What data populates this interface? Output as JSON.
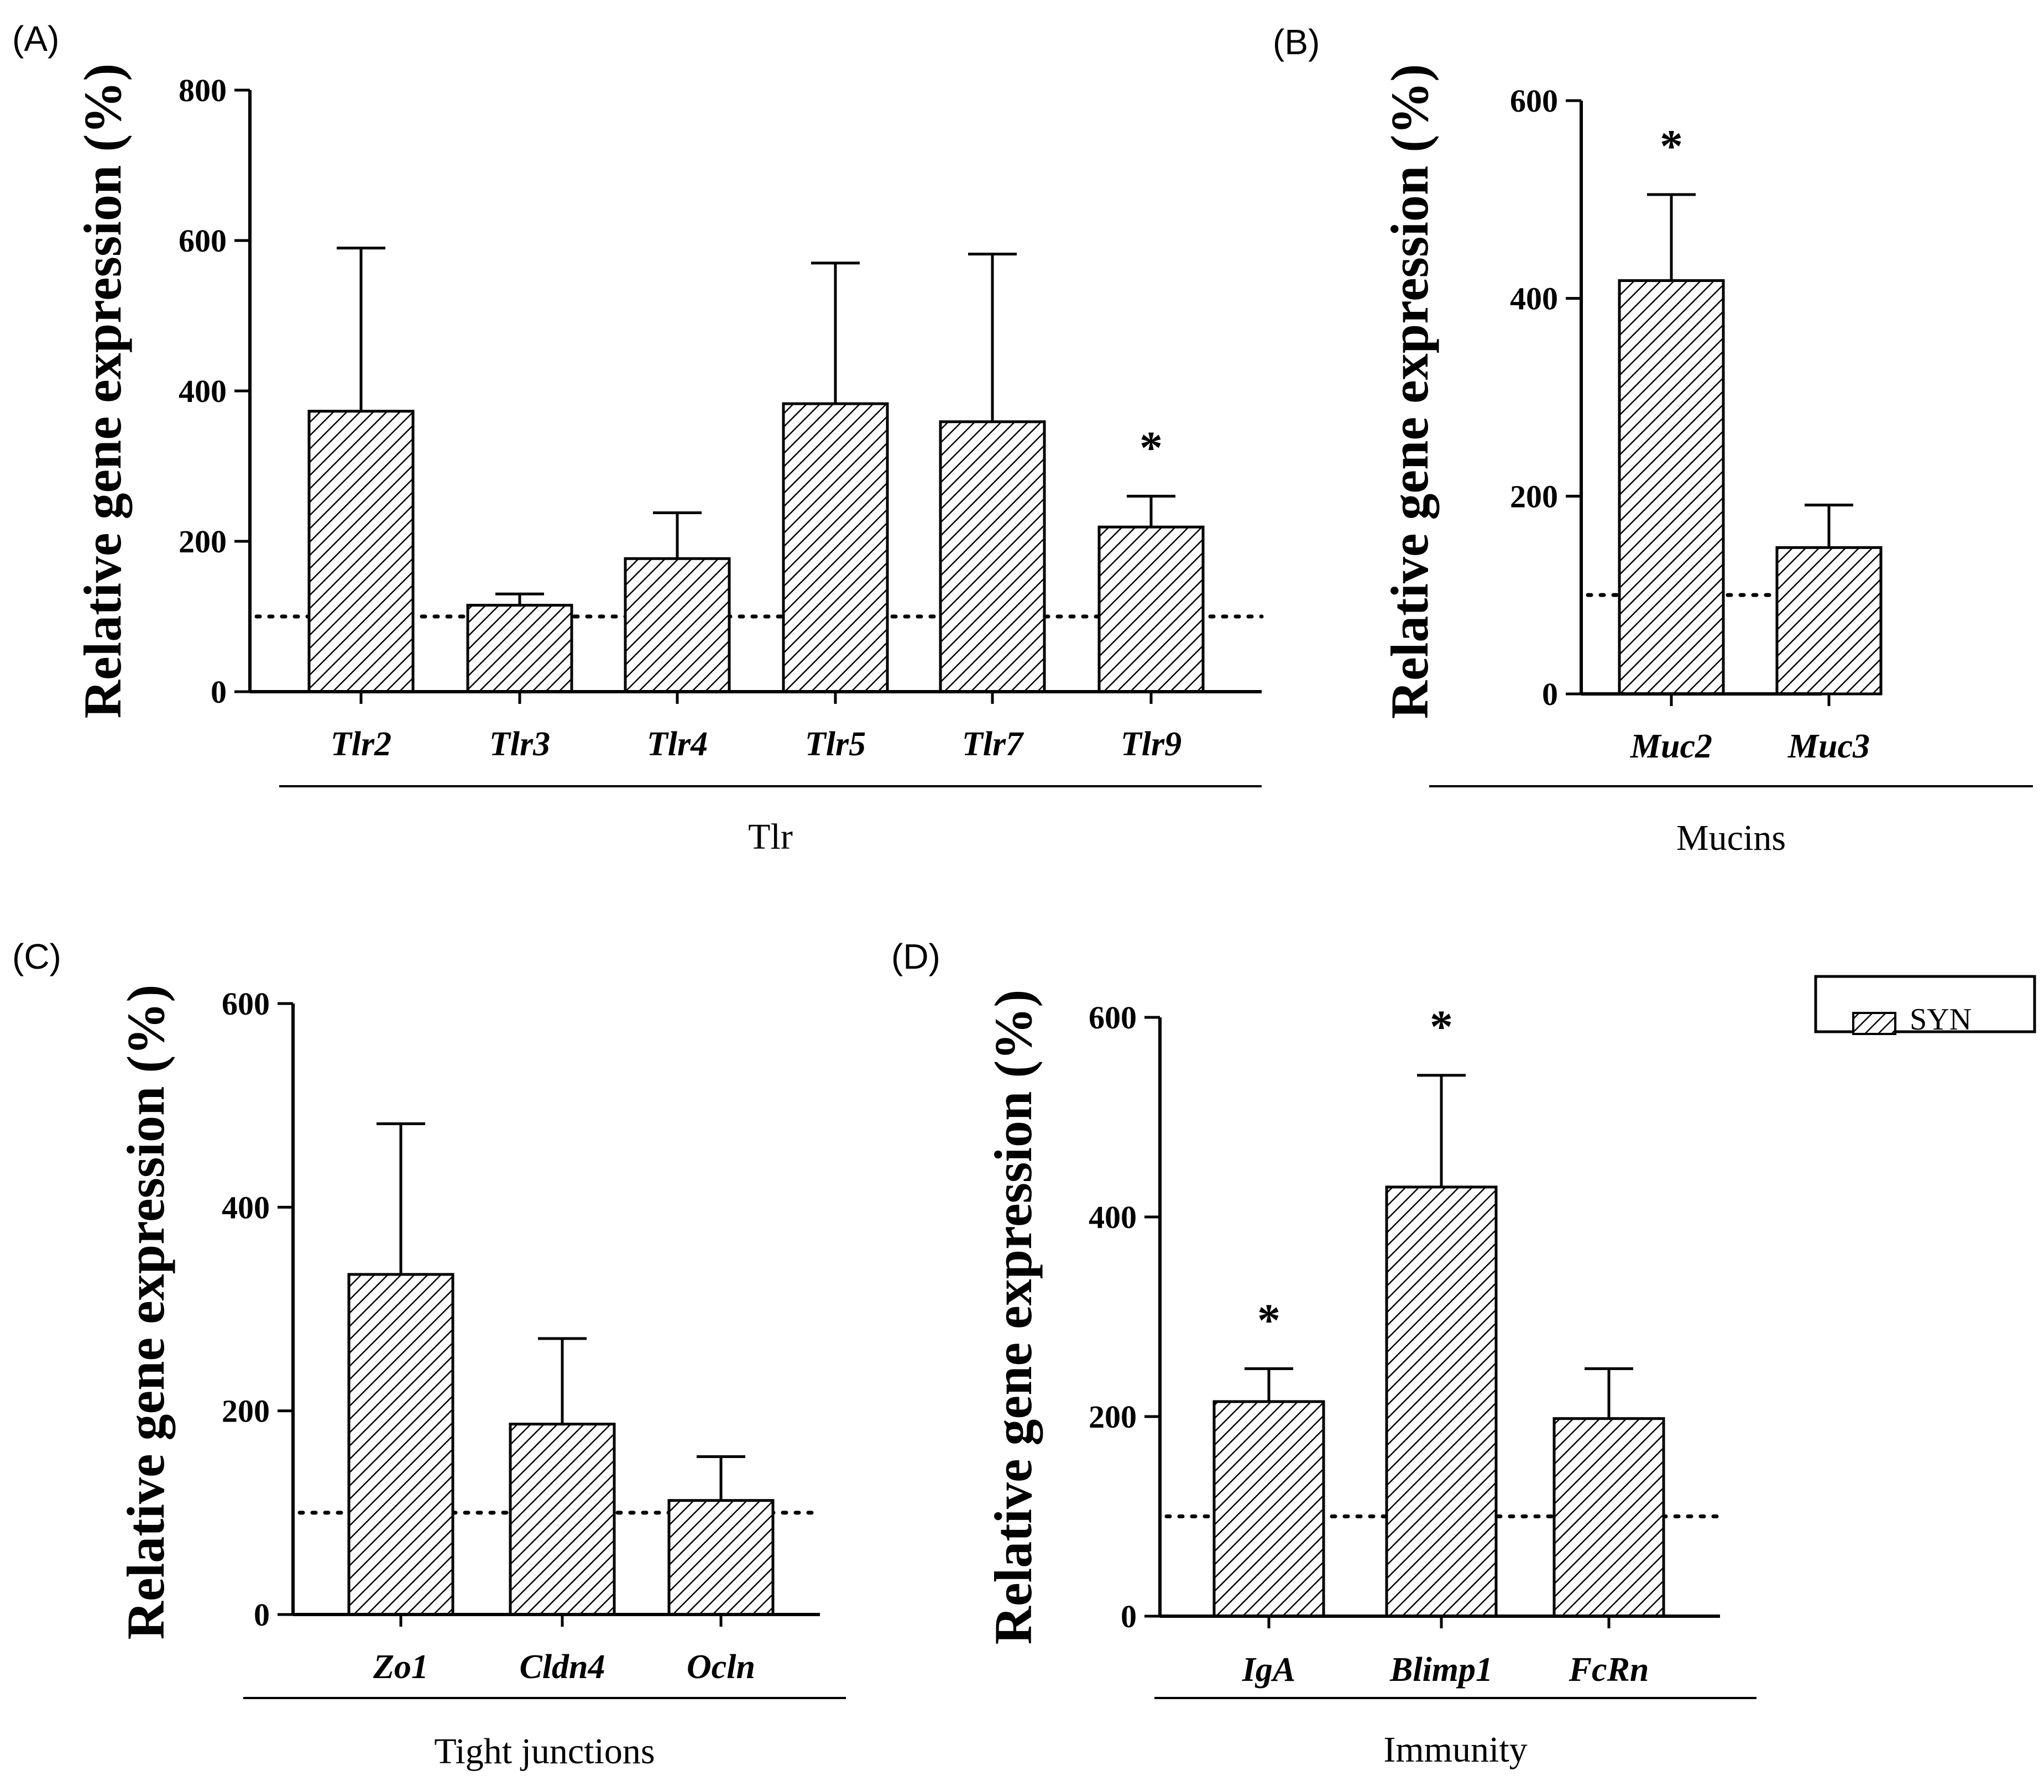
{
  "figure": {
    "hatch_color": "#000000",
    "bar_fill": "#ffffff",
    "reference_line": {
      "value": 100,
      "style": "dotted"
    }
  },
  "legend": {
    "label": "SYN",
    "swatch": "diagonal-hatch"
  },
  "chart_data": [
    {
      "type": "bar",
      "panel_label": "(A)",
      "ylabel": "Relative gene expression (%)",
      "group_label": "Tlr",
      "ylim": [
        0,
        800
      ],
      "yticks": [
        0,
        200,
        400,
        600,
        800
      ],
      "categories": [
        "Tlr2",
        "Tlr3",
        "Tlr4",
        "Tlr5",
        "Tlr7",
        "Tlr9"
      ],
      "series": [
        {
          "values": [
            373,
            115,
            177,
            383,
            359,
            219
          ],
          "error_upper": [
            590,
            130,
            238,
            570,
            582,
            260
          ],
          "significant": [
            false,
            false,
            false,
            false,
            false,
            true
          ]
        }
      ],
      "significance_mark": "*"
    },
    {
      "type": "bar",
      "panel_label": "(B)",
      "ylabel": "Relative gene expression (%)",
      "group_label": "Mucins",
      "ylim": [
        0,
        600
      ],
      "yticks": [
        0,
        200,
        400,
        600
      ],
      "categories": [
        "Muc2",
        "Muc3"
      ],
      "series": [
        {
          "values": [
            418,
            148
          ],
          "error_upper": [
            505,
            191
          ],
          "significant": [
            true,
            false
          ]
        }
      ],
      "significance_mark": "*"
    },
    {
      "type": "bar",
      "panel_label": "(C)",
      "ylabel": "Relative gene expression (%)",
      "group_label": "Tight junctions",
      "ylim": [
        0,
        600
      ],
      "yticks": [
        0,
        200,
        400,
        600
      ],
      "categories": [
        "Zo1",
        "Cldn4",
        "Ocln"
      ],
      "series": [
        {
          "values": [
            334,
            187,
            112
          ],
          "error_upper": [
            482,
            271,
            155
          ],
          "significant": [
            false,
            false,
            false
          ]
        }
      ],
      "significance_mark": "*"
    },
    {
      "type": "bar",
      "panel_label": "(D)",
      "ylabel": "Relative gene expression (%)",
      "group_label": "Immunity",
      "ylim": [
        0,
        600
      ],
      "yticks": [
        0,
        200,
        400,
        600
      ],
      "categories": [
        "IgA",
        "Blimp1",
        "FcRn"
      ],
      "series": [
        {
          "values": [
            215,
            430,
            198
          ],
          "error_upper": [
            248,
            542,
            248
          ],
          "significant": [
            true,
            true,
            false
          ]
        }
      ],
      "significance_mark": "*"
    }
  ]
}
